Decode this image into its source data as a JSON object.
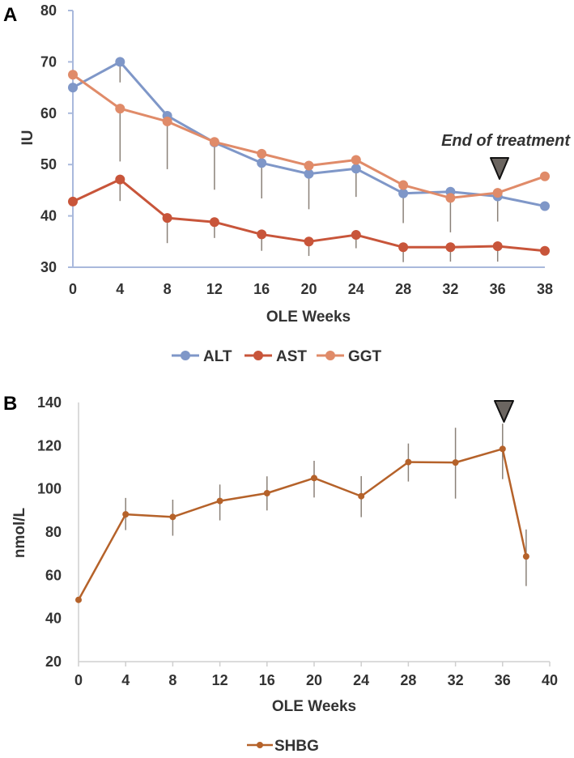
{
  "chart_data": [
    {
      "type": "line",
      "panel_label": "A",
      "title": "",
      "xlabel": "OLE Weeks",
      "ylabel": "IU",
      "categories": [
        "0",
        "4",
        "8",
        "12",
        "16",
        "20",
        "24",
        "28",
        "32",
        "36",
        "38"
      ],
      "ylim": [
        30,
        80
      ],
      "yticks": [
        "30",
        "40",
        "50",
        "60",
        "70",
        "80"
      ],
      "grid": false,
      "legend": "bottom",
      "series": [
        {
          "name": "ALT",
          "color": "#7f97c8",
          "values": [
            65,
            70,
            59.5,
            54.3,
            50.3,
            48.2,
            49.2,
            44.4,
            44.7,
            43.8,
            41.9
          ],
          "error_upper": [
            null,
            null,
            null,
            null,
            null,
            null,
            null,
            null,
            null,
            null,
            null
          ],
          "error_lower": [
            null,
            66,
            null,
            null,
            null,
            null,
            null,
            null,
            null,
            null,
            null
          ]
        },
        {
          "name": "AST",
          "color": "#c8553a",
          "values": [
            42.8,
            47.1,
            39.6,
            38.8,
            36.4,
            35,
            36.3,
            33.9,
            33.9,
            34.1,
            33.2
          ],
          "error_upper": [
            null,
            null,
            null,
            null,
            null,
            null,
            null,
            null,
            null,
            null,
            null
          ],
          "error_lower": [
            null,
            42.9,
            34.7,
            35.7,
            33.2,
            32.2,
            33.7,
            31,
            31.1,
            31.1,
            null
          ]
        },
        {
          "name": "GGT",
          "color": "#e08b69",
          "values": [
            67.5,
            60.9,
            58.4,
            54.4,
            52.1,
            49.8,
            50.9,
            46,
            43.5,
            44.5,
            47.7
          ],
          "error_upper": [
            null,
            null,
            null,
            null,
            null,
            null,
            null,
            null,
            null,
            null,
            null
          ],
          "error_lower": [
            null,
            50.6,
            49.1,
            45.1,
            43.4,
            41.3,
            43.7,
            38.6,
            36.8,
            38.9,
            null
          ]
        }
      ],
      "annotations": [
        {
          "text": "End of treatment",
          "marker": "triangle-down",
          "at_x": "36"
        }
      ]
    },
    {
      "type": "line",
      "panel_label": "B",
      "title": "",
      "xlabel": "OLE Weeks",
      "ylabel": "nmol/L",
      "x": [
        0,
        4,
        8,
        12,
        16,
        20,
        24,
        28,
        32,
        36,
        38
      ],
      "xlim": [
        0,
        40
      ],
      "xticks": [
        "0",
        "4",
        "8",
        "12",
        "16",
        "20",
        "24",
        "28",
        "32",
        "36",
        "40"
      ],
      "ylim": [
        20,
        140
      ],
      "yticks": [
        "20",
        "40",
        "60",
        "80",
        "100",
        "120",
        "140"
      ],
      "grid": false,
      "legend": "bottom",
      "series": [
        {
          "name": "SHBG",
          "color": "#b5622a",
          "values": [
            48.6,
            88.2,
            87,
            94.4,
            98,
            105,
            96.6,
            112.4,
            112.2,
            118.5,
            68.7
          ],
          "error_upper": [
            null,
            95.8,
            95,
            102,
            105.8,
            113,
            105.9,
            121,
            128.3,
            130.2,
            81.2
          ],
          "error_lower": [
            43,
            80.9,
            78.3,
            85.4,
            90,
            96,
            86.9,
            103.4,
            95.5,
            104.5,
            55
          ]
        }
      ],
      "annotations": [
        {
          "text": "",
          "marker": "triangle-down",
          "at_x": 36
        }
      ]
    }
  ]
}
